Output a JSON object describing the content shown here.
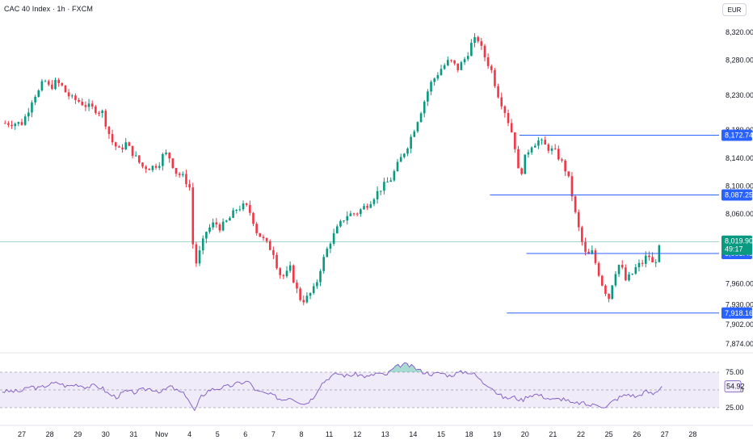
{
  "header": {
    "symbol_title": "CAC 40 Index · 1h · FXCM",
    "currency_button": "EUR"
  },
  "chart_data": {
    "type": "candlestick",
    "title": "CAC 40 Index · 1h · FXCM",
    "currency": "EUR",
    "price_axis": {
      "ticks": [
        8320.0,
        8280.0,
        8230.0,
        8180.0,
        8140.0,
        8100.0,
        8060.0,
        7960.0,
        7930.0,
        7902.0,
        7874.0
      ],
      "tick_labels": [
        "8,320.00",
        "8,280.00",
        "8,230.00",
        "8,180.00",
        "8,140.00",
        "8,100.00",
        "8,060.00",
        "7,960.00",
        "7,930.00",
        "7,902.00",
        "7,874.00"
      ]
    },
    "x_axis": {
      "tick_labels": [
        "27",
        "28",
        "29",
        "30",
        "31",
        "Nov",
        "4",
        "5",
        "6",
        "7",
        "8",
        "11",
        "12",
        "13",
        "14",
        "15",
        "18",
        "19",
        "20",
        "21",
        "22",
        "25",
        "26",
        "27",
        "28"
      ],
      "tick_session_index": [
        0,
        1,
        2,
        3,
        4,
        5,
        6,
        7,
        8,
        9,
        10,
        11,
        12,
        13,
        14,
        15,
        16,
        17,
        18,
        19,
        20,
        21,
        22,
        23,
        24
      ]
    },
    "current_price": {
      "label": "8,019.90",
      "countdown": "49:17",
      "value": 8019.9,
      "color": "#089981"
    },
    "horizontal_lines": [
      {
        "label": "8,172.74",
        "value": 8172.74,
        "start_session": 17.8
      },
      {
        "label": "8,087.25",
        "value": 8087.25,
        "start_session": 16.75
      },
      {
        "label": "8,003.45",
        "value": 8003.45,
        "start_session": 18.05
      },
      {
        "label": "7,918.16",
        "value": 7918.16,
        "start_session": 17.35
      }
    ],
    "price_path": [
      [
        0.0,
        8190
      ],
      [
        0.2,
        8205
      ],
      [
        0.4,
        8228
      ],
      [
        0.6,
        8235
      ],
      [
        0.8,
        8252
      ],
      [
        1.0,
        8240
      ],
      [
        1.2,
        8248
      ],
      [
        1.4,
        8245
      ],
      [
        1.6,
        8232
      ],
      [
        1.8,
        8225
      ],
      [
        2.0,
        8222
      ],
      [
        2.3,
        8215
      ],
      [
        2.6,
        8210
      ],
      [
        2.9,
        8205
      ],
      [
        3.0,
        8190
      ],
      [
        3.2,
        8165
      ],
      [
        3.5,
        8150
      ],
      [
        3.7,
        8162
      ],
      [
        4.0,
        8145
      ],
      [
        4.3,
        8128
      ],
      [
        4.6,
        8126
      ],
      [
        4.9,
        8132
      ],
      [
        5.1,
        8148
      ],
      [
        5.3,
        8140
      ],
      [
        5.5,
        8120
      ],
      [
        5.8,
        8112
      ],
      [
        6.0,
        8098
      ],
      [
        6.1,
        8025
      ],
      [
        6.2,
        7985
      ],
      [
        6.4,
        8010
      ],
      [
        6.6,
        8035
      ],
      [
        6.9,
        8048
      ],
      [
        7.1,
        8040
      ],
      [
        7.4,
        8052
      ],
      [
        7.7,
        8068
      ],
      [
        8.0,
        8072
      ],
      [
        8.2,
        8060
      ],
      [
        8.4,
        8035
      ],
      [
        8.7,
        8020
      ],
      [
        9.0,
        8005
      ],
      [
        9.2,
        7975
      ],
      [
        9.4,
        7970
      ],
      [
        9.6,
        7982
      ],
      [
        9.8,
        7955
      ],
      [
        10.0,
        7935
      ],
      [
        10.2,
        7940
      ],
      [
        10.5,
        7955
      ],
      [
        10.7,
        7985
      ],
      [
        11.0,
        8018
      ],
      [
        11.3,
        8040
      ],
      [
        11.6,
        8058
      ],
      [
        12.0,
        8062
      ],
      [
        12.4,
        8075
      ],
      [
        12.8,
        8095
      ],
      [
        13.2,
        8110
      ],
      [
        13.5,
        8135
      ],
      [
        13.8,
        8158
      ],
      [
        14.0,
        8178
      ],
      [
        14.3,
        8210
      ],
      [
        14.6,
        8245
      ],
      [
        15.0,
        8268
      ],
      [
        15.3,
        8280
      ],
      [
        15.6,
        8268
      ],
      [
        15.9,
        8285
      ],
      [
        16.1,
        8305
      ],
      [
        16.3,
        8312
      ],
      [
        16.5,
        8290
      ],
      [
        16.8,
        8265
      ],
      [
        17.0,
        8235
      ],
      [
        17.3,
        8205
      ],
      [
        17.6,
        8168
      ],
      [
        17.8,
        8110
      ],
      [
        18.0,
        8140
      ],
      [
        18.2,
        8158
      ],
      [
        18.5,
        8165
      ],
      [
        18.8,
        8155
      ],
      [
        19.1,
        8148
      ],
      [
        19.4,
        8128
      ],
      [
        19.6,
        8105
      ],
      [
        19.8,
        8060
      ],
      [
        20.0,
        8025
      ],
      [
        20.2,
        7998
      ],
      [
        20.4,
        8005
      ],
      [
        20.6,
        7980
      ],
      [
        20.8,
        7955
      ],
      [
        21.0,
        7940
      ],
      [
        21.2,
        7975
      ],
      [
        21.4,
        7990
      ],
      [
        21.6,
        7965
      ],
      [
        21.8,
        7972
      ],
      [
        22.0,
        7985
      ],
      [
        22.2,
        7990
      ],
      [
        22.4,
        8003
      ],
      [
        22.6,
        7985
      ],
      [
        22.8,
        8010
      ],
      [
        22.9,
        8019.9
      ]
    ],
    "rsi": {
      "levels": [
        75.0,
        50.0,
        25.0
      ],
      "level_labels": [
        "75.00",
        "50.00",
        "25.00"
      ],
      "value": 54.92,
      "value_label": "54.92",
      "line_color": "#7e57c2",
      "path": [
        [
          0.0,
          48
        ],
        [
          0.3,
          55
        ],
        [
          0.6,
          52
        ],
        [
          1.0,
          58
        ],
        [
          1.3,
          60
        ],
        [
          1.6,
          55
        ],
        [
          2.0,
          58
        ],
        [
          2.3,
          54
        ],
        [
          2.6,
          56
        ],
        [
          2.9,
          52
        ],
        [
          3.1,
          44
        ],
        [
          3.4,
          40
        ],
        [
          3.7,
          48
        ],
        [
          4.0,
          46
        ],
        [
          4.3,
          50
        ],
        [
          4.6,
          52
        ],
        [
          5.0,
          47
        ],
        [
          5.3,
          55
        ],
        [
          5.6,
          48
        ],
        [
          5.9,
          42
        ],
        [
          6.1,
          25
        ],
        [
          6.2,
          20
        ],
        [
          6.4,
          40
        ],
        [
          6.7,
          50
        ],
        [
          7.0,
          52
        ],
        [
          7.4,
          55
        ],
        [
          7.8,
          60
        ],
        [
          8.1,
          62
        ],
        [
          8.4,
          48
        ],
        [
          8.7,
          45
        ],
        [
          9.0,
          42
        ],
        [
          9.3,
          36
        ],
        [
          9.6,
          40
        ],
        [
          9.9,
          34
        ],
        [
          10.1,
          30
        ],
        [
          10.4,
          38
        ],
        [
          10.7,
          58
        ],
        [
          11.0,
          68
        ],
        [
          11.3,
          73
        ],
        [
          11.6,
          70
        ],
        [
          12.0,
          72
        ],
        [
          12.4,
          68
        ],
        [
          12.7,
          74
        ],
        [
          13.0,
          70
        ],
        [
          13.3,
          80
        ],
        [
          13.5,
          84
        ],
        [
          13.7,
          86
        ],
        [
          14.0,
          82
        ],
        [
          14.3,
          76
        ],
        [
          14.7,
          72
        ],
        [
          15.0,
          74
        ],
        [
          15.3,
          70
        ],
        [
          15.6,
          74
        ],
        [
          15.9,
          76
        ],
        [
          16.2,
          72
        ],
        [
          16.5,
          60
        ],
        [
          16.8,
          55
        ],
        [
          17.0,
          45
        ],
        [
          17.3,
          38
        ],
        [
          17.6,
          40
        ],
        [
          17.9,
          35
        ],
        [
          18.1,
          42
        ],
        [
          18.4,
          44
        ],
        [
          18.7,
          40
        ],
        [
          19.0,
          36
        ],
        [
          19.4,
          38
        ],
        [
          19.7,
          30
        ],
        [
          20.0,
          32
        ],
        [
          20.3,
          28
        ],
        [
          20.6,
          30
        ],
        [
          20.9,
          25
        ],
        [
          21.1,
          33
        ],
        [
          21.4,
          40
        ],
        [
          21.7,
          44
        ],
        [
          22.0,
          40
        ],
        [
          22.3,
          48
        ],
        [
          22.6,
          44
        ],
        [
          22.9,
          54.92
        ]
      ]
    },
    "up_color": "#089981",
    "down_color": "#f23645",
    "line_color": "#2962ff"
  }
}
